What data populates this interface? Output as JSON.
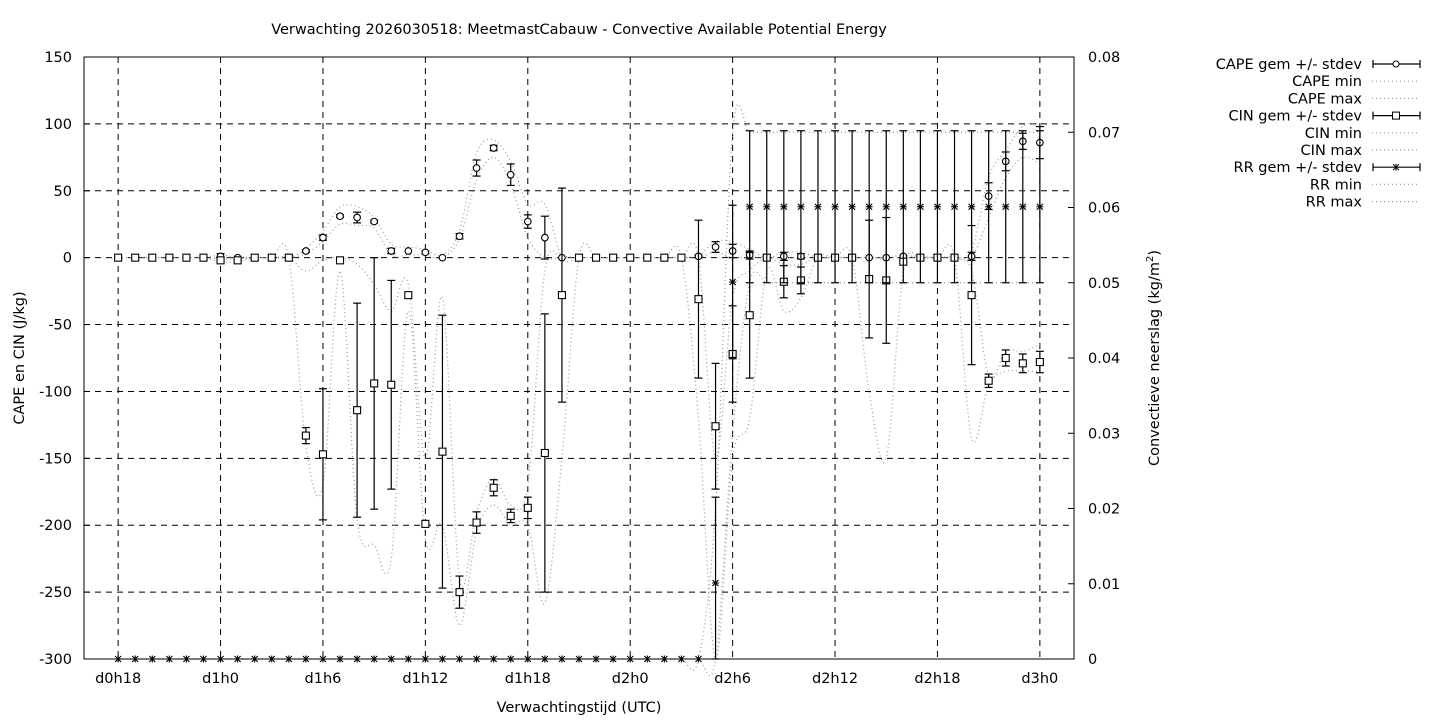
{
  "chart_data": {
    "type": "line",
    "title": "Verwachting 2026030518: MeetmastCabauw - Convective Available Potential Energy",
    "xlabel": "Verwachtingstijd (UTC)",
    "ylabel": "CAPE en CIN (J/kg)",
    "y2label": "Convectieve neerslag (kg/m",
    "y2label_sup": "2",
    "y2label_end": ")",
    "x_unit": "hours since d0h0",
    "xlim": [
      16,
      74
    ],
    "ylim": [
      -300,
      150
    ],
    "y2lim": [
      0,
      0.08
    ],
    "grid": true,
    "legend_position": "right-outside-top",
    "x_ticks": [
      {
        "value": 18,
        "label": "d0h18"
      },
      {
        "value": 24,
        "label": "d1h0"
      },
      {
        "value": 30,
        "label": "d1h6"
      },
      {
        "value": 36,
        "label": "d1h12"
      },
      {
        "value": 42,
        "label": "d1h18"
      },
      {
        "value": 48,
        "label": "d2h0"
      },
      {
        "value": 54,
        "label": "d2h6"
      },
      {
        "value": 60,
        "label": "d2h12"
      },
      {
        "value": 66,
        "label": "d2h18"
      },
      {
        "value": 72,
        "label": "d3h0"
      }
    ],
    "y_ticks": [
      "-300",
      "-250",
      "-200",
      "-150",
      "-100",
      "-50",
      "0",
      "50",
      "100",
      "150"
    ],
    "y2_ticks": [
      "0",
      "0.01",
      "0.02",
      "0.03",
      "0.04",
      "0.05",
      "0.06",
      "0.07",
      "0.08"
    ],
    "x_start": 18,
    "x_step": 1,
    "series": [
      {
        "name": "CAPE gem +/- stdev",
        "axis": "y",
        "style": "errorbar",
        "marker": "circle",
        "values": [
          0,
          0,
          0,
          0,
          0,
          0,
          1,
          0,
          0,
          0,
          0,
          5,
          15,
          31,
          30,
          27,
          5,
          5,
          4,
          0,
          16,
          67,
          82,
          62,
          27,
          15,
          0,
          0,
          0,
          0,
          0,
          0,
          0,
          0,
          1,
          8,
          5,
          2,
          0,
          1,
          1,
          0,
          0,
          0,
          0,
          0,
          1,
          0,
          0,
          0,
          1,
          46,
          72,
          87,
          86
        ],
        "stdev": [
          0,
          0,
          0,
          0,
          0,
          0,
          2,
          0,
          0,
          0,
          0,
          1,
          2,
          1,
          4,
          1,
          2,
          0,
          1,
          0,
          2,
          6,
          2,
          8,
          5,
          16,
          0,
          0,
          0,
          0,
          0,
          0,
          0,
          0,
          1,
          4,
          5,
          3,
          0,
          3,
          2,
          0,
          0,
          0,
          0,
          0,
          0,
          0,
          0,
          0,
          3,
          10,
          7,
          6,
          12
        ]
      },
      {
        "name": "CAPE min",
        "axis": "y",
        "style": "dotted",
        "values": [
          0,
          0,
          0,
          0,
          0,
          0,
          0,
          0,
          0,
          0,
          0,
          3,
          12,
          25,
          24,
          22,
          2,
          2,
          2,
          0,
          14,
          58,
          75,
          55,
          15,
          0,
          0,
          0,
          0,
          0,
          0,
          0,
          0,
          0,
          0,
          4,
          0,
          0,
          0,
          0,
          0,
          0,
          0,
          0,
          0,
          0,
          0,
          0,
          0,
          0,
          0,
          30,
          60,
          75,
          70
        ]
      },
      {
        "name": "CAPE max",
        "axis": "y",
        "style": "dotted",
        "values": [
          0,
          0,
          0,
          0,
          0,
          0,
          2,
          0,
          0,
          0,
          0,
          7,
          20,
          38,
          38,
          30,
          10,
          8,
          6,
          2,
          20,
          78,
          88,
          72,
          40,
          40,
          0,
          0,
          0,
          0,
          0,
          0,
          0,
          0,
          2,
          12,
          12,
          6,
          0,
          4,
          4,
          0,
          0,
          0,
          0,
          0,
          2,
          0,
          0,
          0,
          5,
          60,
          80,
          98,
          100
        ]
      },
      {
        "name": "CIN gem +/- stdev",
        "axis": "y",
        "style": "errorbar",
        "marker": "square",
        "values": [
          0,
          0,
          0,
          0,
          0,
          0,
          -2,
          -2,
          0,
          0,
          0,
          -133,
          -147,
          -2,
          -114,
          -94,
          -95,
          -28,
          -199,
          -145,
          -250,
          -198,
          -172,
          -193,
          -187,
          -146,
          -28,
          0,
          0,
          0,
          0,
          0,
          0,
          0,
          -31,
          -126,
          -72,
          -43,
          0,
          -18,
          -17,
          0,
          0,
          0,
          -16,
          -17,
          -3,
          0,
          0,
          0,
          -28,
          -92,
          -75,
          -79,
          -78
        ],
        "stdev": [
          0,
          0,
          0,
          0,
          0,
          0,
          0,
          0,
          0,
          0,
          0,
          6,
          49,
          0,
          80,
          94,
          78,
          0,
          0,
          102,
          12,
          8,
          6,
          5,
          8,
          104,
          80,
          0,
          0,
          0,
          0,
          0,
          0,
          0,
          59,
          47,
          36,
          47,
          0,
          12,
          10,
          0,
          0,
          0,
          44,
          47,
          0,
          0,
          0,
          0,
          52,
          5,
          6,
          7,
          8
        ]
      },
      {
        "name": "CIN min",
        "axis": "y",
        "style": "dotted",
        "values": [
          0,
          0,
          0,
          0,
          0,
          0,
          -3,
          -3,
          0,
          0,
          0,
          -140,
          -170,
          -10,
          -195,
          -215,
          -225,
          -40,
          -210,
          -200,
          -275,
          -205,
          -185,
          -200,
          -200,
          -258,
          -150,
          0,
          0,
          0,
          0,
          0,
          0,
          0,
          -120,
          -300,
          -150,
          -120,
          -10,
          -40,
          -30,
          0,
          0,
          0,
          -100,
          -150,
          -10,
          0,
          0,
          0,
          -135,
          -95,
          -85,
          -85,
          -85
        ]
      },
      {
        "name": "CIN max",
        "axis": "y",
        "style": "dotted",
        "values": [
          0,
          0,
          0,
          0,
          0,
          0,
          -1,
          -1,
          0,
          0,
          0,
          -10,
          -2,
          0,
          -5,
          -20,
          -40,
          -20,
          -150,
          -30,
          -240,
          -190,
          -165,
          -185,
          -170,
          -10,
          0,
          0,
          0,
          0,
          0,
          0,
          0,
          0,
          0,
          -150,
          -30,
          -10,
          0,
          -5,
          -5,
          0,
          0,
          0,
          0,
          0,
          0,
          0,
          0,
          0,
          -10,
          -88,
          -70,
          -70,
          -65
        ]
      },
      {
        "name": "RR gem +/- stdev",
        "axis": "y2",
        "style": "errorbar",
        "marker": "asterisk",
        "values": [
          0,
          0,
          0,
          0,
          0,
          0,
          0,
          0,
          0,
          0,
          0,
          0,
          0,
          0,
          0,
          0,
          0,
          0,
          0,
          0,
          0,
          0,
          0,
          0,
          0,
          0,
          0,
          0,
          0,
          0,
          0,
          0,
          0,
          0,
          0,
          0.0101,
          0.0501,
          0.0601,
          0.0601,
          0.0601,
          0.0601,
          0.0601,
          0.0601,
          0.0601,
          0.0601,
          0.0601,
          0.0601,
          0.0601,
          0.0601,
          0.0601,
          0.0601,
          0.0601,
          0.0601,
          0.0601,
          0.0601
        ],
        "stdev": [
          0,
          0,
          0,
          0,
          0,
          0,
          0,
          0,
          0,
          0,
          0,
          0,
          0,
          0,
          0,
          0,
          0,
          0,
          0,
          0,
          0,
          0,
          0,
          0,
          0,
          0,
          0,
          0,
          0,
          0,
          0,
          0,
          0,
          0,
          0,
          0.0114,
          0.0102,
          0.0101,
          0.0101,
          0.0101,
          0.0101,
          0.0101,
          0.0101,
          0.0101,
          0.0101,
          0.0101,
          0.0101,
          0.0101,
          0.0101,
          0.0101,
          0.0101,
          0.0101,
          0.0101,
          0.0101,
          0.0101
        ]
      },
      {
        "name": "RR min",
        "axis": "y2",
        "style": "dotted",
        "values": [
          0,
          0,
          0,
          0,
          0,
          0,
          0,
          0,
          0,
          0,
          0,
          0,
          0,
          0,
          0,
          0,
          0,
          0,
          0,
          0,
          0,
          0,
          0,
          0,
          0,
          0,
          0,
          0,
          0,
          0,
          0,
          0,
          0,
          0,
          0,
          0,
          0.03,
          0.05,
          0.05,
          0.05,
          0.05,
          0.05,
          0.05,
          0.05,
          0.05,
          0.05,
          0.05,
          0.05,
          0.05,
          0.05,
          0.05,
          0.05,
          0.05,
          0.05,
          0.05
        ]
      },
      {
        "name": "RR max",
        "axis": "y2",
        "style": "dotted",
        "values": [
          0,
          0,
          0,
          0,
          0,
          0,
          0,
          0,
          0,
          0,
          0,
          0,
          0,
          0,
          0,
          0,
          0,
          0,
          0,
          0,
          0,
          0,
          0,
          0,
          0,
          0,
          0,
          0,
          0,
          0,
          0,
          0,
          0,
          0,
          0,
          0.02,
          0.07,
          0.07,
          0.07,
          0.07,
          0.07,
          0.07,
          0.07,
          0.07,
          0.07,
          0.07,
          0.07,
          0.07,
          0.07,
          0.07,
          0.07,
          0.07,
          0.07,
          0.07,
          0.07
        ]
      }
    ]
  }
}
